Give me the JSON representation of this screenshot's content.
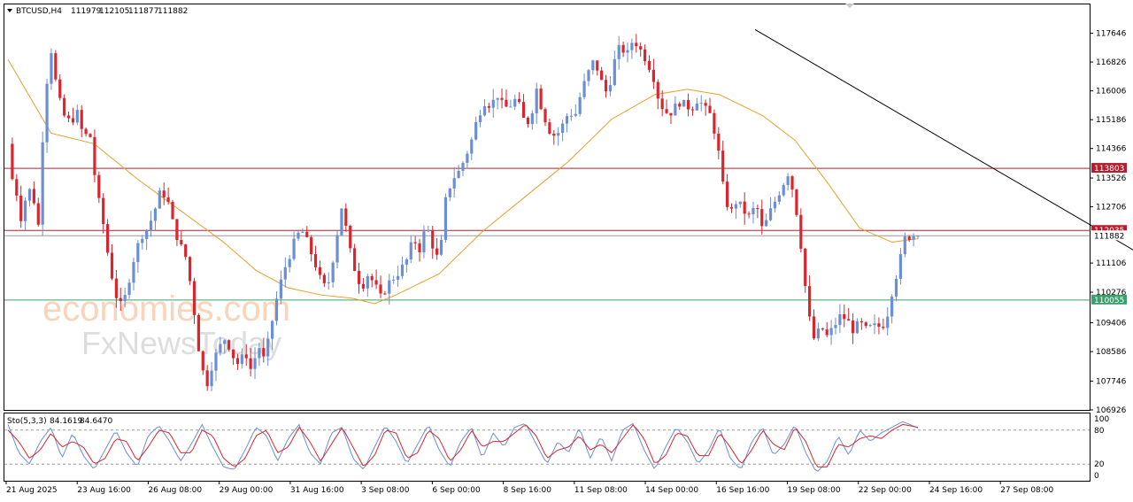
{
  "header": {
    "symbol": "BTCUSD,H4",
    "open": "111979",
    "high": "112105",
    "low": "111877",
    "close": "111882"
  },
  "watermark": {
    "brand1": "economies.com",
    "brand2": "FxNewsToday"
  },
  "colors": {
    "bull": "#6b8fd4",
    "bear": "#d9262e",
    "ma": "#e3a12b",
    "resistance": "#b22030",
    "support": "#3aa06b",
    "trendline": "#000000",
    "stoch_main": "#6b8fd4",
    "stoch_signal": "#d9262e"
  },
  "chart_data": {
    "type": "candlestick",
    "symbol": "BTCUSD",
    "timeframe": "H4",
    "ylim": [
      106926,
      118466
    ],
    "yticks": [
      "117646",
      "116826",
      "116006",
      "115186",
      "114366",
      "113526",
      "112706",
      "111106",
      "110276",
      "109406",
      "108586",
      "107746",
      "106926"
    ],
    "xticks": [
      "21 Aug 2025",
      "23 Aug 16:00",
      "26 Aug 08:00",
      "29 Aug 00:00",
      "31 Aug 16:00",
      "3 Sep 08:00",
      "6 Sep 00:00",
      "8 Sep 16:00",
      "11 Sep 08:00",
      "14 Sep 00:00",
      "16 Sep 16:00",
      "19 Sep 08:00",
      "22 Sep 00:00",
      "24 Sep 16:00",
      "27 Sep 08:00"
    ],
    "levels": [
      {
        "value": 113803,
        "label": "113803",
        "kind": "resistance"
      },
      {
        "value": 112035,
        "label": "112035",
        "kind": "resistance"
      },
      {
        "value": 111882,
        "label": "111882",
        "kind": "current"
      },
      {
        "value": 110055,
        "label": "110055",
        "kind": "support"
      }
    ],
    "trendline": {
      "from_index": 0.6,
      "from_value": 117750,
      "to_index": 1,
      "to_value": 109400
    },
    "price_path": [
      [
        0.0,
        114500
      ],
      [
        0.004,
        113500
      ],
      [
        0.008,
        113100
      ],
      [
        0.012,
        112400
      ],
      [
        0.016,
        112900
      ],
      [
        0.022,
        113300
      ],
      [
        0.028,
        112100
      ],
      [
        0.034,
        115800
      ],
      [
        0.04,
        117200
      ],
      [
        0.046,
        115900
      ],
      [
        0.052,
        115300
      ],
      [
        0.058,
        115100
      ],
      [
        0.064,
        115400
      ],
      [
        0.07,
        114700
      ],
      [
        0.076,
        114800
      ],
      [
        0.082,
        113200
      ],
      [
        0.088,
        112300
      ],
      [
        0.094,
        111100
      ],
      [
        0.1,
        110200
      ],
      [
        0.106,
        109800
      ],
      [
        0.112,
        110600
      ],
      [
        0.118,
        111400
      ],
      [
        0.124,
        111900
      ],
      [
        0.13,
        112100
      ],
      [
        0.136,
        112600
      ],
      [
        0.142,
        113200
      ],
      [
        0.148,
        112900
      ],
      [
        0.154,
        112100
      ],
      [
        0.16,
        111600
      ],
      [
        0.166,
        111200
      ],
      [
        0.172,
        109900
      ],
      [
        0.178,
        108400
      ],
      [
        0.184,
        107600
      ],
      [
        0.19,
        108300
      ],
      [
        0.196,
        108700
      ],
      [
        0.202,
        109000
      ],
      [
        0.208,
        108500
      ],
      [
        0.214,
        108200
      ],
      [
        0.22,
        108600
      ],
      [
        0.226,
        108000
      ],
      [
        0.232,
        108800
      ],
      [
        0.238,
        108300
      ],
      [
        0.244,
        109300
      ],
      [
        0.25,
        110200
      ],
      [
        0.256,
        110900
      ],
      [
        0.262,
        111400
      ],
      [
        0.268,
        111900
      ],
      [
        0.274,
        112000
      ],
      [
        0.28,
        111500
      ],
      [
        0.286,
        111000
      ],
      [
        0.292,
        110400
      ],
      [
        0.298,
        110600
      ],
      [
        0.304,
        111700
      ],
      [
        0.31,
        112800
      ],
      [
        0.316,
        111600
      ],
      [
        0.322,
        110900
      ],
      [
        0.328,
        110400
      ],
      [
        0.334,
        110800
      ],
      [
        0.34,
        110500
      ],
      [
        0.346,
        110100
      ],
      [
        0.352,
        110500
      ],
      [
        0.358,
        110700
      ],
      [
        0.364,
        110900
      ],
      [
        0.37,
        111200
      ],
      [
        0.376,
        111800
      ],
      [
        0.382,
        111500
      ],
      [
        0.388,
        112200
      ],
      [
        0.394,
        111600
      ],
      [
        0.4,
        111100
      ],
      [
        0.406,
        112900
      ],
      [
        0.412,
        113500
      ],
      [
        0.418,
        113700
      ],
      [
        0.424,
        114100
      ],
      [
        0.43,
        114600
      ],
      [
        0.436,
        115300
      ],
      [
        0.442,
        115700
      ],
      [
        0.448,
        115600
      ],
      [
        0.454,
        115900
      ],
      [
        0.46,
        115500
      ],
      [
        0.466,
        115600
      ],
      [
        0.472,
        115800
      ],
      [
        0.478,
        115200
      ],
      [
        0.484,
        115100
      ],
      [
        0.49,
        116100
      ],
      [
        0.496,
        115400
      ],
      [
        0.502,
        114900
      ],
      [
        0.508,
        114700
      ],
      [
        0.514,
        115000
      ],
      [
        0.52,
        115400
      ],
      [
        0.526,
        115300
      ],
      [
        0.532,
        116000
      ],
      [
        0.538,
        116500
      ],
      [
        0.544,
        116900
      ],
      [
        0.55,
        116300
      ],
      [
        0.556,
        115900
      ],
      [
        0.562,
        116800
      ],
      [
        0.568,
        117300
      ],
      [
        0.574,
        117000
      ],
      [
        0.58,
        117500
      ],
      [
        0.586,
        117200
      ],
      [
        0.592,
        116900
      ],
      [
        0.598,
        116500
      ],
      [
        0.604,
        115700
      ],
      [
        0.61,
        115400
      ],
      [
        0.616,
        115400
      ],
      [
        0.622,
        115700
      ],
      [
        0.628,
        115600
      ],
      [
        0.634,
        115500
      ],
      [
        0.64,
        115800
      ],
      [
        0.646,
        115500
      ],
      [
        0.652,
        115300
      ],
      [
        0.658,
        114500
      ],
      [
        0.664,
        113100
      ],
      [
        0.67,
        112500
      ],
      [
        0.676,
        112900
      ],
      [
        0.682,
        112600
      ],
      [
        0.688,
        112400
      ],
      [
        0.694,
        112800
      ],
      [
        0.7,
        112000
      ],
      [
        0.706,
        112500
      ],
      [
        0.712,
        112900
      ],
      [
        0.718,
        113300
      ],
      [
        0.724,
        113700
      ],
      [
        0.73,
        112900
      ],
      [
        0.736,
        111500
      ],
      [
        0.742,
        109700
      ],
      [
        0.748,
        108900
      ],
      [
        0.754,
        109300
      ],
      [
        0.76,
        109000
      ],
      [
        0.766,
        109300
      ],
      [
        0.772,
        109600
      ],
      [
        0.778,
        109500
      ],
      [
        0.784,
        109200
      ],
      [
        0.79,
        109400
      ],
      [
        0.796,
        109200
      ],
      [
        0.802,
        109300
      ],
      [
        0.808,
        109300
      ],
      [
        0.814,
        109400
      ],
      [
        0.82,
        110300
      ],
      [
        0.826,
        111000
      ],
      [
        0.832,
        111800
      ],
      [
        0.838,
        111900
      ],
      [
        0.844,
        111882
      ]
    ],
    "ma_path": [
      [
        0.0,
        116900
      ],
      [
        0.04,
        114800
      ],
      [
        0.08,
        114500
      ],
      [
        0.12,
        113500
      ],
      [
        0.16,
        112600
      ],
      [
        0.2,
        111700
      ],
      [
        0.23,
        110900
      ],
      [
        0.26,
        110400
      ],
      [
        0.29,
        110200
      ],
      [
        0.32,
        110100
      ],
      [
        0.34,
        109950
      ],
      [
        0.36,
        110200
      ],
      [
        0.4,
        110800
      ],
      [
        0.44,
        112000
      ],
      [
        0.48,
        113000
      ],
      [
        0.52,
        114000
      ],
      [
        0.56,
        115200
      ],
      [
        0.6,
        115900
      ],
      [
        0.63,
        116050
      ],
      [
        0.66,
        115900
      ],
      [
        0.7,
        115300
      ],
      [
        0.73,
        114600
      ],
      [
        0.76,
        113400
      ],
      [
        0.79,
        112100
      ],
      [
        0.82,
        111700
      ],
      [
        0.844,
        111800
      ]
    ],
    "stochastic": {
      "label": "Sto(5,3,3)",
      "main": "84.1619",
      "signal": "84.6470",
      "ylim": [
        0,
        100
      ],
      "levels": [
        80,
        20
      ],
      "yticks": [
        "100",
        "80",
        "20",
        "0"
      ],
      "main_path": [
        [
          0.0,
          90
        ],
        [
          0.01,
          40
        ],
        [
          0.02,
          20
        ],
        [
          0.03,
          60
        ],
        [
          0.04,
          85
        ],
        [
          0.05,
          30
        ],
        [
          0.06,
          75
        ],
        [
          0.07,
          35
        ],
        [
          0.08,
          10
        ],
        [
          0.09,
          45
        ],
        [
          0.1,
          80
        ],
        [
          0.11,
          40
        ],
        [
          0.12,
          15
        ],
        [
          0.13,
          70
        ],
        [
          0.14,
          88
        ],
        [
          0.15,
          60
        ],
        [
          0.16,
          25
        ],
        [
          0.17,
          55
        ],
        [
          0.18,
          90
        ],
        [
          0.19,
          50
        ],
        [
          0.2,
          15
        ],
        [
          0.21,
          10
        ],
        [
          0.22,
          45
        ],
        [
          0.23,
          85
        ],
        [
          0.24,
          70
        ],
        [
          0.25,
          25
        ],
        [
          0.26,
          65
        ],
        [
          0.27,
          90
        ],
        [
          0.28,
          40
        ],
        [
          0.29,
          20
        ],
        [
          0.3,
          75
        ],
        [
          0.31,
          85
        ],
        [
          0.32,
          30
        ],
        [
          0.33,
          10
        ],
        [
          0.34,
          50
        ],
        [
          0.35,
          88
        ],
        [
          0.36,
          60
        ],
        [
          0.37,
          20
        ],
        [
          0.38,
          55
        ],
        [
          0.39,
          90
        ],
        [
          0.4,
          45
        ],
        [
          0.41,
          15
        ],
        [
          0.42,
          60
        ],
        [
          0.43,
          85
        ],
        [
          0.44,
          30
        ],
        [
          0.45,
          75
        ],
        [
          0.46,
          50
        ],
        [
          0.47,
          85
        ],
        [
          0.48,
          92
        ],
        [
          0.49,
          55
        ],
        [
          0.5,
          20
        ],
        [
          0.51,
          60
        ],
        [
          0.52,
          40
        ],
        [
          0.53,
          85
        ],
        [
          0.54,
          30
        ],
        [
          0.55,
          70
        ],
        [
          0.56,
          25
        ],
        [
          0.57,
          80
        ],
        [
          0.58,
          92
        ],
        [
          0.59,
          45
        ],
        [
          0.6,
          10
        ],
        [
          0.61,
          50
        ],
        [
          0.62,
          85
        ],
        [
          0.63,
          60
        ],
        [
          0.64,
          20
        ],
        [
          0.65,
          45
        ],
        [
          0.66,
          85
        ],
        [
          0.67,
          30
        ],
        [
          0.68,
          10
        ],
        [
          0.69,
          60
        ],
        [
          0.7,
          85
        ],
        [
          0.71,
          35
        ],
        [
          0.72,
          55
        ],
        [
          0.73,
          90
        ],
        [
          0.74,
          40
        ],
        [
          0.75,
          5
        ],
        [
          0.76,
          25
        ],
        [
          0.77,
          70
        ],
        [
          0.78,
          35
        ],
        [
          0.79,
          80
        ],
        [
          0.8,
          60
        ],
        [
          0.81,
          75
        ],
        [
          0.82,
          85
        ],
        [
          0.83,
          95
        ],
        [
          0.844,
          84
        ]
      ],
      "signal_path": [
        [
          0.0,
          80
        ],
        [
          0.01,
          60
        ],
        [
          0.02,
          30
        ],
        [
          0.03,
          45
        ],
        [
          0.04,
          75
        ],
        [
          0.05,
          50
        ],
        [
          0.06,
          60
        ],
        [
          0.07,
          50
        ],
        [
          0.08,
          20
        ],
        [
          0.09,
          30
        ],
        [
          0.1,
          65
        ],
        [
          0.11,
          60
        ],
        [
          0.12,
          25
        ],
        [
          0.13,
          50
        ],
        [
          0.14,
          80
        ],
        [
          0.15,
          75
        ],
        [
          0.16,
          40
        ],
        [
          0.17,
          40
        ],
        [
          0.18,
          80
        ],
        [
          0.19,
          70
        ],
        [
          0.2,
          30
        ],
        [
          0.21,
          15
        ],
        [
          0.22,
          30
        ],
        [
          0.23,
          70
        ],
        [
          0.24,
          80
        ],
        [
          0.25,
          40
        ],
        [
          0.26,
          50
        ],
        [
          0.27,
          85
        ],
        [
          0.28,
          60
        ],
        [
          0.29,
          25
        ],
        [
          0.3,
          55
        ],
        [
          0.31,
          85
        ],
        [
          0.32,
          50
        ],
        [
          0.33,
          15
        ],
        [
          0.34,
          35
        ],
        [
          0.35,
          80
        ],
        [
          0.36,
          75
        ],
        [
          0.37,
          30
        ],
        [
          0.38,
          40
        ],
        [
          0.39,
          80
        ],
        [
          0.4,
          65
        ],
        [
          0.41,
          25
        ],
        [
          0.42,
          45
        ],
        [
          0.43,
          80
        ],
        [
          0.44,
          50
        ],
        [
          0.45,
          60
        ],
        [
          0.46,
          60
        ],
        [
          0.47,
          75
        ],
        [
          0.48,
          90
        ],
        [
          0.49,
          70
        ],
        [
          0.5,
          30
        ],
        [
          0.51,
          45
        ],
        [
          0.52,
          50
        ],
        [
          0.53,
          70
        ],
        [
          0.54,
          45
        ],
        [
          0.55,
          55
        ],
        [
          0.56,
          40
        ],
        [
          0.57,
          65
        ],
        [
          0.58,
          90
        ],
        [
          0.59,
          65
        ],
        [
          0.6,
          20
        ],
        [
          0.61,
          35
        ],
        [
          0.62,
          75
        ],
        [
          0.63,
          70
        ],
        [
          0.64,
          35
        ],
        [
          0.65,
          35
        ],
        [
          0.66,
          75
        ],
        [
          0.67,
          50
        ],
        [
          0.68,
          20
        ],
        [
          0.69,
          45
        ],
        [
          0.7,
          80
        ],
        [
          0.71,
          55
        ],
        [
          0.72,
          45
        ],
        [
          0.73,
          85
        ],
        [
          0.74,
          60
        ],
        [
          0.75,
          15
        ],
        [
          0.76,
          15
        ],
        [
          0.77,
          55
        ],
        [
          0.78,
          50
        ],
        [
          0.79,
          65
        ],
        [
          0.8,
          70
        ],
        [
          0.81,
          65
        ],
        [
          0.82,
          80
        ],
        [
          0.83,
          90
        ],
        [
          0.844,
          85
        ]
      ]
    }
  }
}
